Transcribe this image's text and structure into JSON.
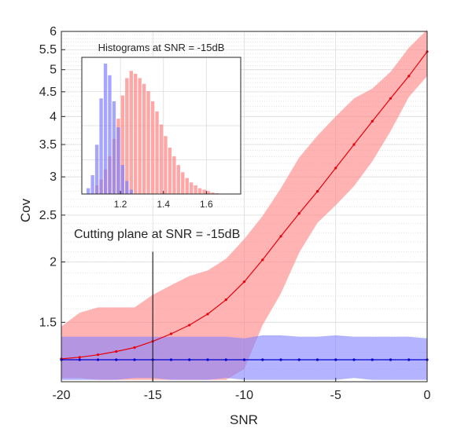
{
  "chart_data": [
    {
      "type": "line",
      "title": "",
      "xlabel": "SNR",
      "ylabel": "Cov",
      "y_scale": "log",
      "xlim": [
        -20,
        0
      ],
      "ylim": [
        1.13,
        6.0
      ],
      "x_ticks": [
        -20,
        -15,
        -10,
        -5,
        0
      ],
      "x_tick_labels": [
        "-20",
        "-15",
        "-10",
        "-5",
        "0"
      ],
      "y_ticks": [
        1.5,
        2,
        2.5,
        3,
        3.5,
        4,
        4.5,
        5,
        5.5,
        6
      ],
      "y_tick_labels": [
        "1.5",
        "2",
        "2.5",
        "3",
        "3.5",
        "4",
        "4.5",
        "5",
        "5.5",
        "6"
      ],
      "grid": true,
      "legend": "none",
      "x": [
        -20,
        -19,
        -18,
        -17,
        -16,
        -15,
        -14,
        -13,
        -12,
        -11,
        -10,
        -9,
        -8,
        -7,
        -6,
        -5,
        -4,
        -3,
        -2,
        -1,
        0
      ],
      "series": [
        {
          "color": "#e8000b",
          "band_color": "#ff8080",
          "values": [
            1.26,
            1.27,
            1.285,
            1.305,
            1.33,
            1.37,
            1.42,
            1.48,
            1.56,
            1.67,
            1.82,
            2.02,
            2.26,
            2.52,
            2.8,
            3.13,
            3.5,
            3.91,
            4.36,
            4.85,
            5.45
          ],
          "upper": [
            1.47,
            1.57,
            1.61,
            1.61,
            1.61,
            1.71,
            1.79,
            1.87,
            1.92,
            2.03,
            2.23,
            2.49,
            2.84,
            3.29,
            3.65,
            4.0,
            4.36,
            4.57,
            4.95,
            5.55,
            6.05
          ],
          "lower": [
            1.15,
            1.15,
            1.14,
            1.14,
            1.14,
            1.14,
            1.14,
            1.14,
            1.14,
            1.14,
            1.2,
            1.48,
            1.72,
            2.09,
            2.41,
            2.62,
            2.87,
            3.23,
            3.73,
            4.39,
            4.85
          ]
        },
        {
          "color": "#0000cc",
          "band_color": "#8080ff",
          "values": [
            1.255,
            1.255,
            1.255,
            1.255,
            1.255,
            1.255,
            1.255,
            1.255,
            1.255,
            1.255,
            1.255,
            1.255,
            1.255,
            1.255,
            1.255,
            1.255,
            1.255,
            1.255,
            1.255,
            1.255,
            1.255
          ],
          "upper": [
            1.4,
            1.4,
            1.4,
            1.4,
            1.4,
            1.4,
            1.4,
            1.4,
            1.4,
            1.4,
            1.39,
            1.41,
            1.41,
            1.4,
            1.4,
            1.41,
            1.4,
            1.4,
            1.4,
            1.4,
            1.39
          ],
          "lower": [
            1.14,
            1.14,
            1.14,
            1.14,
            1.15,
            1.15,
            1.14,
            1.14,
            1.14,
            1.15,
            1.14,
            1.14,
            1.14,
            1.14,
            1.14,
            1.14,
            1.15,
            1.14,
            1.14,
            1.14,
            1.14
          ]
        }
      ],
      "annotations": [
        {
          "text": "Cutting plane at SNR = -15dB",
          "x": -15,
          "line_y_range": [
            1.13,
            2.1
          ]
        }
      ]
    },
    {
      "type": "bar",
      "title": "Histograms at SNR = -15dB",
      "xlim": [
        1.02,
        1.76
      ],
      "x_ticks": [
        1.2,
        1.4,
        1.6
      ],
      "x_tick_labels": [
        "1.2",
        "1.4",
        "1.6"
      ],
      "grid": true,
      "bin_width": 0.02,
      "series": [
        {
          "color": "#8080ff",
          "bins": [
            1.05,
            1.07,
            1.09,
            1.11,
            1.13,
            1.15,
            1.17,
            1.19,
            1.21,
            1.23,
            1.25
          ],
          "counts": [
            0.04,
            0.13,
            0.34,
            0.66,
            0.9,
            0.82,
            0.64,
            0.46,
            0.2,
            0.09,
            0.03
          ]
        },
        {
          "color": "#ff8080",
          "bins": [
            1.09,
            1.11,
            1.13,
            1.15,
            1.17,
            1.19,
            1.21,
            1.23,
            1.25,
            1.27,
            1.29,
            1.31,
            1.33,
            1.35,
            1.37,
            1.39,
            1.41,
            1.43,
            1.45,
            1.47,
            1.49,
            1.51,
            1.53,
            1.55,
            1.57,
            1.59,
            1.61,
            1.63,
            1.65
          ],
          "counts": [
            0.06,
            0.1,
            0.17,
            0.26,
            0.38,
            0.52,
            0.68,
            0.8,
            0.85,
            0.83,
            0.8,
            0.76,
            0.71,
            0.64,
            0.57,
            0.48,
            0.4,
            0.32,
            0.26,
            0.2,
            0.15,
            0.11,
            0.08,
            0.06,
            0.04,
            0.03,
            0.02,
            0.01,
            0.005
          ]
        }
      ]
    }
  ]
}
